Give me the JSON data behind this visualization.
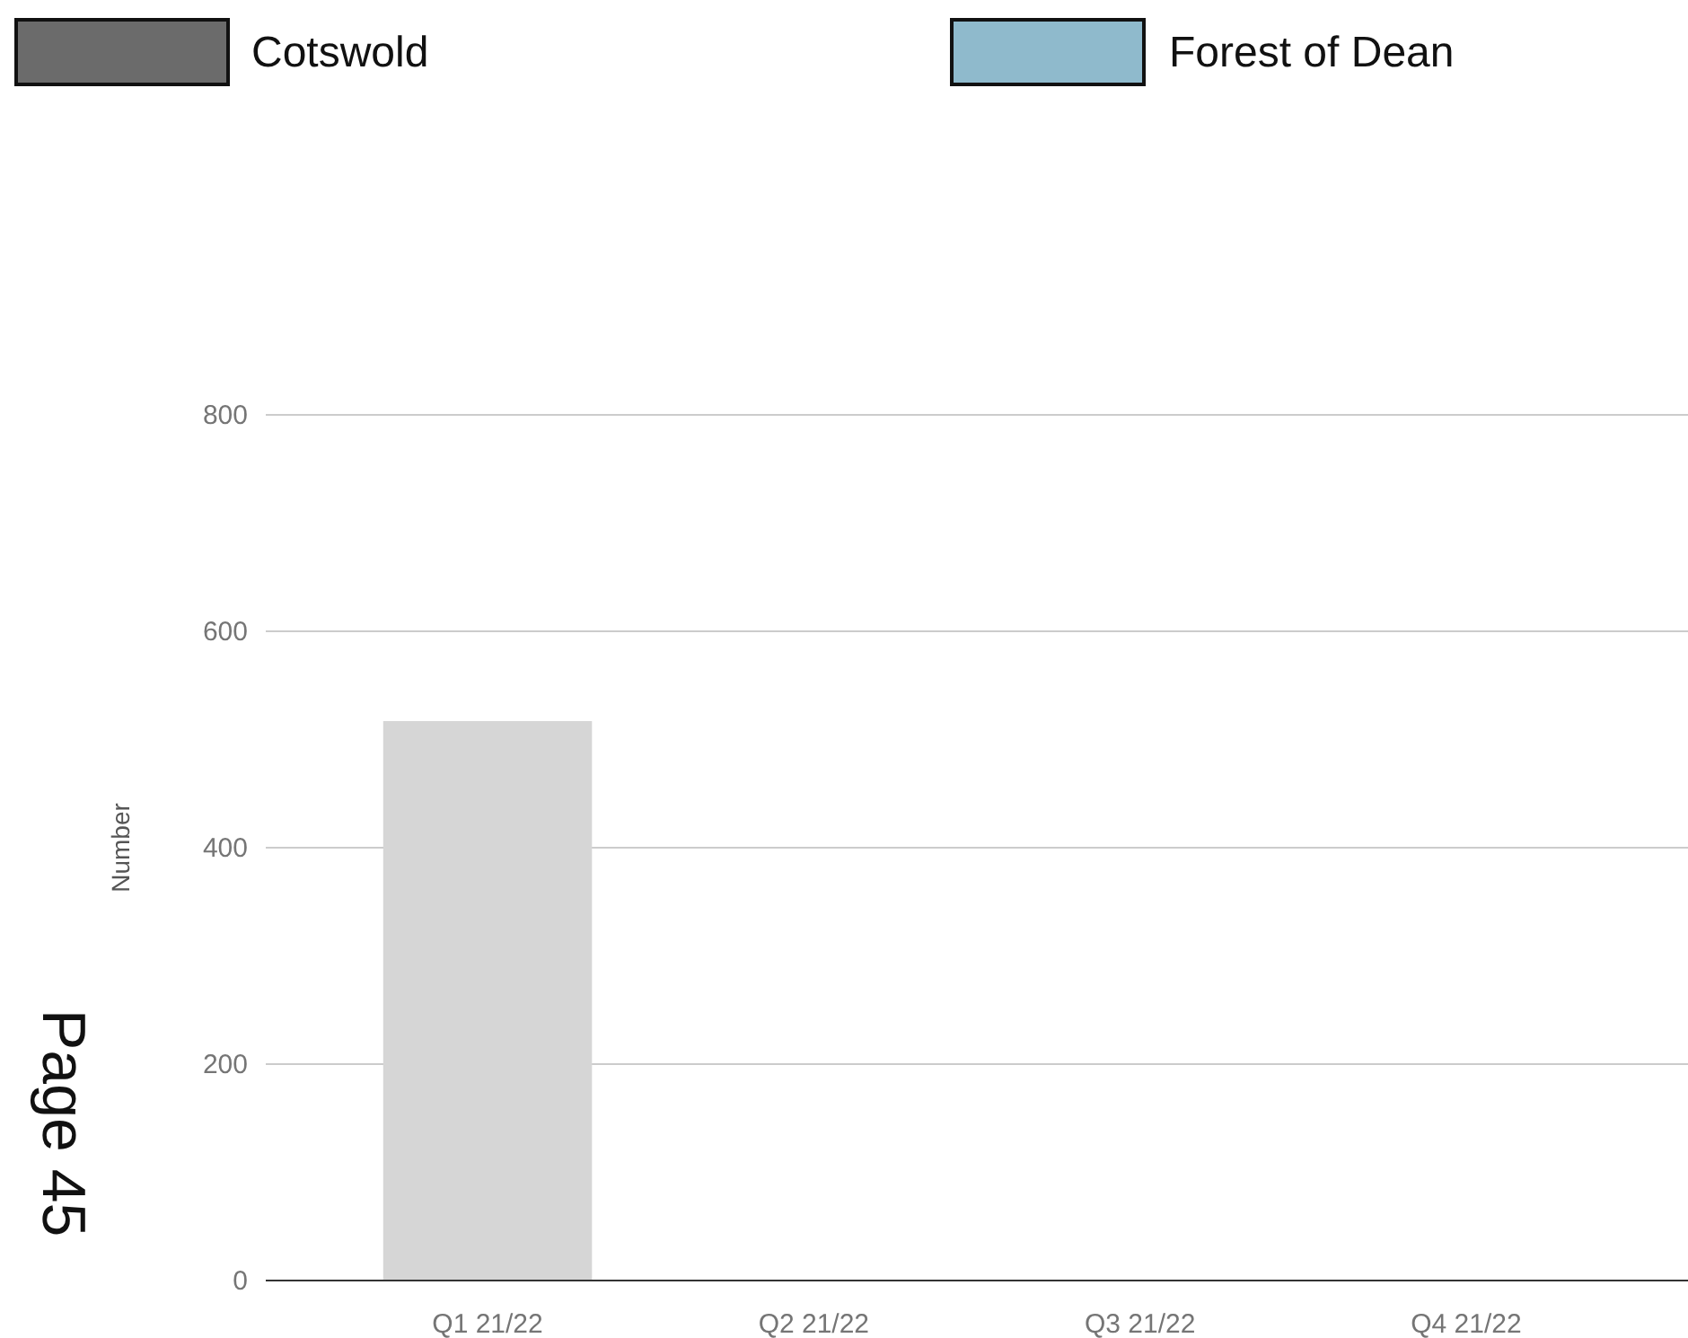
{
  "chart_data": {
    "type": "bar",
    "ylabel": "Number",
    "categories": [
      "Q1 21/22",
      "Q2 21/22",
      "Q3 21/22",
      "Q4 21/22"
    ],
    "series": [
      {
        "name": "Cotswold",
        "color": "#6b6b6b",
        "values": [
          null,
          null,
          null,
          null
        ]
      },
      {
        "name": "Forest of Dean",
        "color": "#8fbacc",
        "values": [
          null,
          null,
          null,
          null
        ]
      },
      {
        "color": "#d6d6d6",
        "values": [
          517,
          null,
          null,
          null
        ]
      }
    ],
    "ylim": [
      0,
      800
    ],
    "yticks": [
      0,
      200,
      400,
      600,
      800
    ],
    "grid": "y",
    "legend": "top",
    "annotations": [
      "Page 45"
    ]
  }
}
